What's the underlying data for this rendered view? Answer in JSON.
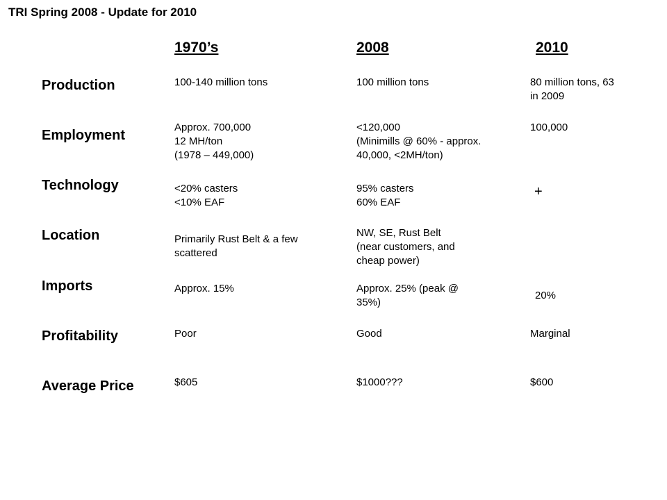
{
  "title": "TRI Spring 2008 - Update for 2010",
  "columns": [
    "1970’s",
    "2008",
    "2010"
  ],
  "rows": [
    {
      "label": "Production",
      "c1970": "100-140 million tons",
      "c2008": "100 million tons",
      "c2010": "80 million tons, 63\nin 2009"
    },
    {
      "label": "Employment",
      "c1970": "Approx. 700,000\n12 MH/ton\n(1978 – 449,000)",
      "c2008": "<120,000\n(Minimills @ 60% - approx.\n40,000, <2MH/ton)",
      "c2010": "100,000"
    },
    {
      "label": "Technology",
      "c1970": "<20% casters\n<10% EAF",
      "c2008": "95% casters\n60% EAF",
      "c2010": "+"
    },
    {
      "label": "Location",
      "c1970": "Primarily Rust Belt & a few\nscattered",
      "c2008": "NW, SE, Rust Belt\n(near customers, and\ncheap power)",
      "c2010": ""
    },
    {
      "label": "Imports",
      "c1970": "Approx. 15%",
      "c2008": "Approx. 25% (peak @\n35%)",
      "c2010": "20%"
    },
    {
      "label": "Profitability",
      "c1970": "Poor",
      "c2008": "Good",
      "c2010": "Marginal"
    },
    {
      "label": "Average Price",
      "c1970": "$605",
      "c2008": "$1000???",
      "c2010": "$600"
    }
  ]
}
